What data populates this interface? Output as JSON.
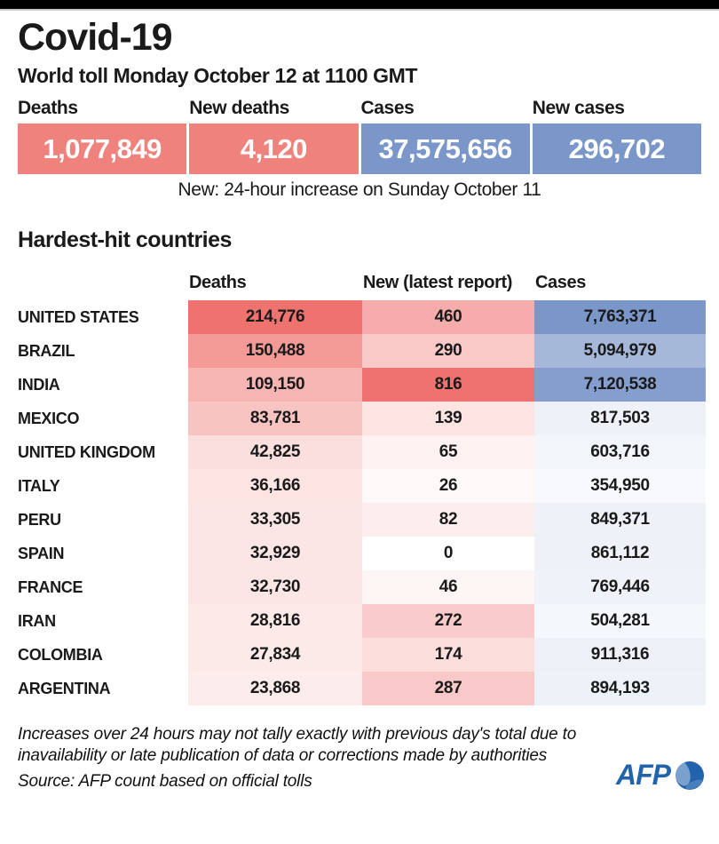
{
  "header": {
    "title": "Covid-19",
    "subtitle": "World toll Monday October 12 at 1100 GMT"
  },
  "summary": {
    "boxes": [
      {
        "label": "Deaths",
        "value": "1,077,849",
        "color": "#ef827d"
      },
      {
        "label": "New deaths",
        "value": "4,120",
        "color": "#ef827d"
      },
      {
        "label": "Cases",
        "value": "37,575,656",
        "color": "#7b96c9"
      },
      {
        "label": "New cases",
        "value": "296,702",
        "color": "#7b96c9"
      }
    ],
    "note": "New: 24-hour increase on Sunday October 11"
  },
  "section_title": "Hardest-hit countries",
  "table": {
    "columns": [
      "Deaths",
      "New (latest report)",
      "Cases"
    ],
    "rows": [
      {
        "country": "UNITED STATES",
        "deaths": "214,776",
        "new": "460",
        "cases": "7,763,371"
      },
      {
        "country": "BRAZIL",
        "deaths": "150,488",
        "new": "290",
        "cases": "5,094,979"
      },
      {
        "country": "INDIA",
        "deaths": "109,150",
        "new": "816",
        "cases": "7,120,538"
      },
      {
        "country": "MEXICO",
        "deaths": "83,781",
        "new": "139",
        "cases": "817,503"
      },
      {
        "country": "UNITED KINGDOM",
        "deaths": "42,825",
        "new": "65",
        "cases": "603,716"
      },
      {
        "country": "ITALY",
        "deaths": "36,166",
        "new": "26",
        "cases": "354,950"
      },
      {
        "country": "PERU",
        "deaths": "33,305",
        "new": "82",
        "cases": "849,371"
      },
      {
        "country": "SPAIN",
        "deaths": "32,929",
        "new": "0",
        "cases": "861,112"
      },
      {
        "country": "FRANCE",
        "deaths": "32,730",
        "new": "46",
        "cases": "769,446"
      },
      {
        "country": "IRAN",
        "deaths": "28,816",
        "new": "272",
        "cases": "504,281"
      },
      {
        "country": "COLOMBIA",
        "deaths": "27,834",
        "new": "174",
        "cases": "911,316"
      },
      {
        "country": "ARGENTINA",
        "deaths": "23,868",
        "new": "287",
        "cases": "894,193"
      }
    ]
  },
  "chart_data": {
    "type": "table",
    "title": "Covid-19 — World toll Monday October 12 at 1100 GMT",
    "subtitle_note": "New: 24-hour increase on Sunday October 11",
    "summary_totals": {
      "deaths": 1077849,
      "new_deaths": 4120,
      "cases": 37575656,
      "new_cases": 296702
    },
    "columns": [
      "Deaths",
      "New (latest report)",
      "Cases"
    ],
    "categories": [
      "UNITED STATES",
      "BRAZIL",
      "INDIA",
      "MEXICO",
      "UNITED KINGDOM",
      "ITALY",
      "PERU",
      "SPAIN",
      "FRANCE",
      "IRAN",
      "COLOMBIA",
      "ARGENTINA"
    ],
    "series": [
      {
        "name": "Deaths",
        "values": [
          214776,
          150488,
          109150,
          83781,
          42825,
          36166,
          33305,
          32929,
          32730,
          28816,
          27834,
          23868
        ]
      },
      {
        "name": "New (latest report)",
        "values": [
          460,
          290,
          816,
          139,
          65,
          26,
          82,
          0,
          46,
          272,
          174,
          287
        ]
      },
      {
        "name": "Cases",
        "values": [
          7763371,
          5094979,
          7120538,
          817503,
          603716,
          354950,
          849371,
          861112,
          769446,
          504281,
          911316,
          894193
        ]
      }
    ],
    "layout_hints": {
      "heatmap": true,
      "deaths_and_new_scale": "white-to-red per column max",
      "cases_scale": "white-to-blue per column max"
    }
  },
  "footer": {
    "footnote": "Increases over 24 hours may not tally exactly with previous day's total due to inavailability or late publication of data or corrections made by authorities",
    "source": "Source: AFP count based on official tolls",
    "logo_text": "AFP"
  },
  "colors": {
    "heat_red": "#ee736f",
    "heat_blue": "#7b96c9",
    "logo_blue": "#2263ae",
    "topbar": "#000000",
    "text": "#1a1a1a"
  }
}
